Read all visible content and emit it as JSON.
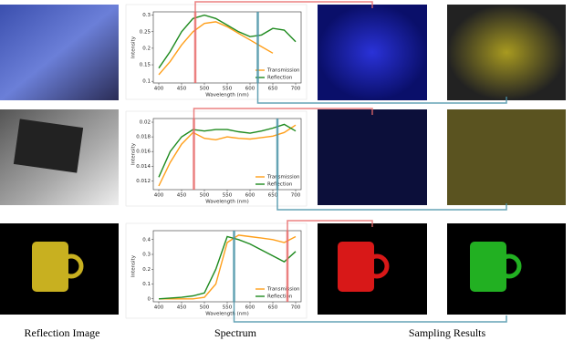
{
  "chart_data": [
    {
      "type": "line",
      "xlabel": "Wavelength (nm)",
      "ylabel": "Intensity",
      "x": [
        400,
        425,
        450,
        475,
        500,
        525,
        550,
        575,
        600,
        625,
        650,
        675,
        700
      ],
      "series": [
        {
          "name": "Transmission",
          "color": "#ff9f1a",
          "values": [
            0.12,
            0.16,
            0.21,
            0.25,
            0.275,
            0.28,
            0.265,
            0.245,
            0.225,
            0.205,
            0.185,
            null,
            null
          ]
        },
        {
          "name": "Reflection",
          "color": "#1e8a1e",
          "values": [
            0.14,
            0.19,
            0.25,
            0.29,
            0.3,
            0.29,
            0.27,
            0.25,
            0.235,
            0.24,
            0.26,
            0.255,
            0.22
          ]
        }
      ],
      "xlim": [
        388,
        712
      ],
      "ylim": [
        0.095,
        0.31
      ],
      "xticks": [
        400,
        450,
        500,
        550,
        600,
        650,
        700
      ],
      "yticks": [
        0.1,
        0.15,
        0.2,
        0.25,
        0.3
      ],
      "legend": "lower-right",
      "vlines": [
        {
          "value": 480,
          "color": "#e86a6a"
        },
        {
          "value": 617,
          "color": "#4a93a8"
        }
      ]
    },
    {
      "type": "line",
      "xlabel": "Wavelength (nm)",
      "ylabel": "Intensity",
      "x": [
        400,
        425,
        450,
        475,
        500,
        525,
        550,
        575,
        600,
        625,
        650,
        675,
        700
      ],
      "series": [
        {
          "name": "Transmission",
          "color": "#ff9f1a",
          "values": [
            0.0113,
            0.0145,
            0.017,
            0.0186,
            0.0178,
            0.0176,
            0.018,
            0.0178,
            0.0177,
            0.0179,
            0.0181,
            0.0186,
            0.0196
          ]
        },
        {
          "name": "Reflection",
          "color": "#1e8a1e",
          "values": [
            0.0125,
            0.016,
            0.018,
            0.019,
            0.0188,
            0.019,
            0.019,
            0.0187,
            0.0185,
            0.0188,
            0.0192,
            0.0197,
            0.0188
          ]
        }
      ],
      "xlim": [
        388,
        712
      ],
      "ylim": [
        0.0108,
        0.0205
      ],
      "xticks": [
        400,
        450,
        500,
        550,
        600,
        650,
        700
      ],
      "yticks": [
        0.012,
        0.014,
        0.016,
        0.018,
        0.02
      ],
      "legend": "lower-right",
      "vlines": [
        {
          "value": 477,
          "color": "#e86a6a"
        },
        {
          "value": 660,
          "color": "#4a93a8"
        }
      ]
    },
    {
      "type": "line",
      "xlabel": "Wavelength (nm)",
      "ylabel": "Intensity",
      "x": [
        400,
        425,
        450,
        475,
        500,
        525,
        550,
        575,
        600,
        625,
        650,
        675,
        700
      ],
      "series": [
        {
          "name": "Transmission",
          "color": "#ff9f1a",
          "values": [
            0,
            0,
            0,
            0,
            0.01,
            0.1,
            0.38,
            0.43,
            0.42,
            0.41,
            0.4,
            0.38,
            0.42
          ]
        },
        {
          "name": "Reflection",
          "color": "#1e8a1e",
          "values": [
            0,
            0.005,
            0.01,
            0.02,
            0.04,
            0.2,
            0.42,
            0.4,
            0.37,
            0.33,
            0.29,
            0.25,
            0.32
          ]
        }
      ],
      "xlim": [
        388,
        712
      ],
      "ylim": [
        -0.02,
        0.46
      ],
      "xticks": [
        400,
        450,
        500,
        550,
        600,
        650,
        700
      ],
      "yticks": [
        0.0,
        0.1,
        0.2,
        0.3,
        0.4
      ],
      "legend": "lower-right",
      "vlines": [
        {
          "value": 682,
          "color": "#e86a6a"
        },
        {
          "value": 565,
          "color": "#4a93a8"
        }
      ]
    }
  ],
  "captions": [
    "Reflection Image",
    "Spectrum",
    "Sampling Results"
  ]
}
